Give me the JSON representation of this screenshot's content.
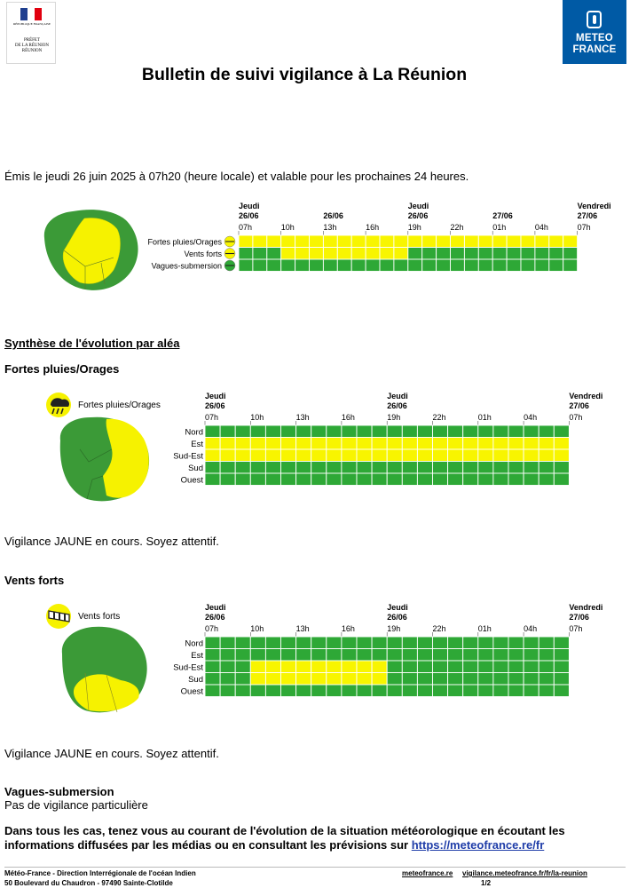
{
  "header": {
    "prefecture_logo": {
      "republic_text": "RÉPUBLIQUE FRANÇAISE",
      "prefect_lines": [
        "PRÉFET",
        "DE LA RÉUNION",
        "RÉUNION"
      ]
    },
    "meteo_logo": {
      "line1": "METEO",
      "line2": "FRANCE"
    },
    "title": "Bulletin de suivi vigilance à La Réunion"
  },
  "issued_text": "Émis le jeudi 26 juin 2025 à 07h20 (heure locale) et valable pour les prochaines 24 heures.",
  "overview": {
    "day_labels": [
      {
        "day": "Jeudi",
        "date": "26/06",
        "hour": "07h"
      },
      {
        "day": "",
        "date": "26/06",
        "hour": "13h"
      },
      {
        "day": "Jeudi",
        "date": "26/06",
        "hour": "19h"
      },
      {
        "day": "",
        "date": "27/06",
        "hour": "01h"
      },
      {
        "day": "Vendredi",
        "date": "27/06",
        "hour": "07h"
      }
    ],
    "hours": [
      "07h",
      "10h",
      "13h",
      "16h",
      "19h",
      "22h",
      "01h",
      "04h",
      "07h"
    ],
    "rows": [
      {
        "label": "Fortes pluies/Orages",
        "icon": "rain-storm-icon",
        "cells": "YYYYYYYYYYYYYYYYYYYYYYYY"
      },
      {
        "label": "Vents forts",
        "icon": "wind-icon",
        "cells": "GGGYYYYYYYYYGGGGGGGGGGGG"
      },
      {
        "label": "Vagues-submersion",
        "icon": "waves-icon",
        "cells": "GGGGGGGGGGGGGGGGGGGGGGGG"
      }
    ]
  },
  "synthesis_heading": "Synthèse de l'évolution par aléa",
  "sections": [
    {
      "heading": "Fortes pluies/Orages",
      "legend": "Fortes pluies/Orages",
      "icon": "rain-storm-icon",
      "day_labels": [
        {
          "day": "Jeudi",
          "date": "26/06"
        },
        {
          "day": "Jeudi",
          "date": "26/06"
        },
        {
          "day": "Vendredi",
          "date": "27/06"
        }
      ],
      "hours": [
        "07h",
        "10h",
        "13h",
        "16h",
        "19h",
        "22h",
        "01h",
        "04h",
        "07h"
      ],
      "rows": [
        {
          "label": "Nord",
          "cells": "GGGGGGGGGGGGGGGGGGGGGGGG"
        },
        {
          "label": "Est",
          "cells": "YYYYYYYYYYYYYYYYYYYYYYYY"
        },
        {
          "label": "Sud-Est",
          "cells": "YYYYYYYYYYYYYYYYYYYYYYYY"
        },
        {
          "label": "Sud",
          "cells": "GGGGGGGGGGGGGGGGGGGGGGGG"
        },
        {
          "label": "Ouest",
          "cells": "GGGGGGGGGGGGGGGGGGGGGGGG"
        }
      ],
      "status": "Vigilance JAUNE en cours. Soyez attentif."
    },
    {
      "heading": "Vents forts",
      "legend": "Vents forts",
      "icon": "wind-icon",
      "day_labels": [
        {
          "day": "Jeudi",
          "date": "26/06"
        },
        {
          "day": "Jeudi",
          "date": "26/06"
        },
        {
          "day": "Vendredi",
          "date": "27/06"
        }
      ],
      "hours": [
        "07h",
        "10h",
        "13h",
        "16h",
        "19h",
        "22h",
        "01h",
        "04h",
        "07h"
      ],
      "rows": [
        {
          "label": "Nord",
          "cells": "GGGGGGGGGGGGGGGGGGGGGGGG"
        },
        {
          "label": "Est",
          "cells": "GGGGGGGGGGGGGGGGGGGGGGGG"
        },
        {
          "label": "Sud-Est",
          "cells": "GGGYYYYYYYYYGGGGGGGGGGGG"
        },
        {
          "label": "Sud",
          "cells": "GGGYYYYYYYYYGGGGGGGGGGGG"
        },
        {
          "label": "Ouest",
          "cells": "GGGGGGGGGGGGGGGGGGGGGGGG"
        }
      ],
      "status": "Vigilance JAUNE en cours. Soyez attentif."
    }
  ],
  "waves": {
    "heading": "Vagues-submersion",
    "text": "Pas de vigilance particulière"
  },
  "final_text": "Dans tous les cas, tenez vous au courant de l'évolution de la situation météorologique en écoutant les informations diffusées par les médias ou en consultant les prévisions sur ",
  "final_link": "https://meteofrance.re/fr",
  "footer": {
    "org": "Météo-France - Direction Interrégionale de l'océan Indien",
    "address": "50 Boulevard du Chaudron - 97490 Sainte-Clotilde",
    "link1": "meteofrance.re",
    "link2": "vigilance.meteofrance.fr/fr/la-reunion",
    "page": "1/2"
  },
  "colors": {
    "green": "#2ea836",
    "yellow": "#f8f500",
    "map_green": "#3b9a37",
    "map_yellow": "#f6f200",
    "brand_blue": "#005aa5"
  }
}
